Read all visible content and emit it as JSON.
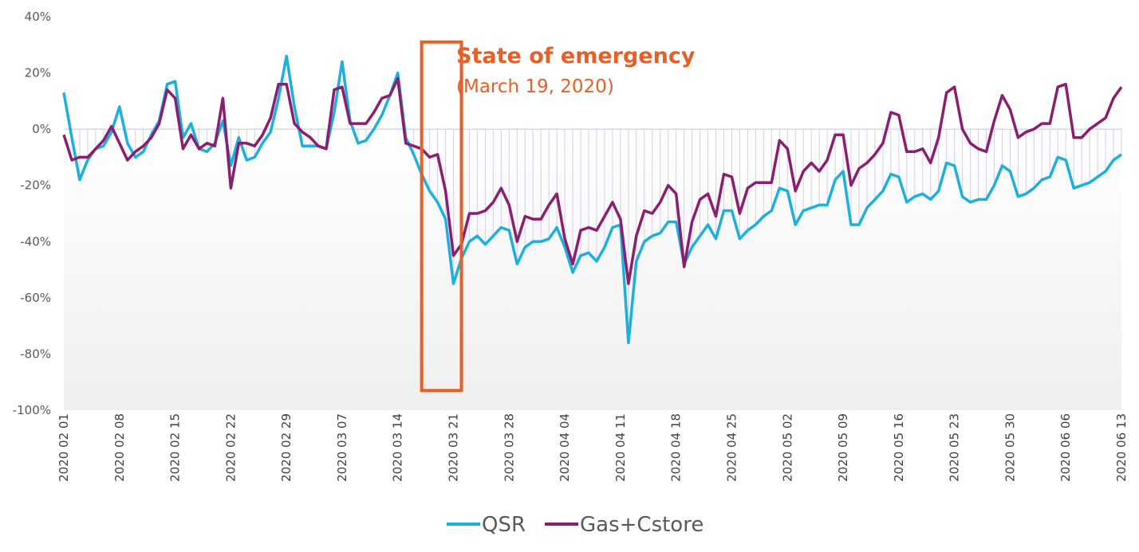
{
  "chart_data": {
    "type": "line",
    "title": "",
    "xlabel": "",
    "ylabel": "",
    "ylim": [
      -100,
      40
    ],
    "ytick_labels": [
      "40%",
      "20%",
      "0%",
      "-20%",
      "-40%",
      "-60%",
      "-80%",
      "-100%"
    ],
    "yticks": [
      40,
      20,
      0,
      -20,
      -40,
      -60,
      -80,
      -100
    ],
    "xtick_labels": [
      "2020 02 01",
      "2020 02 08",
      "2020 02 15",
      "2020 02 22",
      "2020 02 29",
      "2020 03 07",
      "2020 03 14",
      "2020 03 21",
      "2020 03 28",
      "2020 04 04",
      "2020 04 11",
      "2020 04 18",
      "2020 04 25",
      "2020 05 02",
      "2020 05 09",
      "2020 05 16",
      "2020 05 23",
      "2020 05 30",
      "2020 06 06",
      "2020 06 13"
    ],
    "x_start": "2020-02-01",
    "x_end": "2020-06-13",
    "grid": false,
    "legend_position": "bottom",
    "series": [
      {
        "name": "QSR",
        "color": "#1CB0DD",
        "values": [
          13,
          -3,
          -18,
          -11,
          -7,
          -6,
          -1,
          8,
          -5,
          -10,
          -8,
          -2,
          3,
          16,
          17,
          -3,
          2,
          -7,
          -8,
          -5,
          3,
          -13,
          -3,
          -11,
          -10,
          -5,
          -1,
          11,
          26,
          8,
          -6,
          -6,
          -6,
          -7,
          6,
          24,
          3,
          -5,
          -4,
          0,
          5,
          12,
          20,
          -3,
          -9,
          -16,
          -22,
          -26,
          -32,
          -55,
          -46,
          -40,
          -38,
          -41,
          -38,
          -35,
          -36,
          -48,
          -42,
          -40,
          -40,
          -39,
          -35,
          -42,
          -51,
          -45,
          -44,
          -47,
          -42,
          -35,
          -34,
          -76,
          -47,
          -40,
          -38,
          -37,
          -33,
          -33,
          -48,
          -42,
          -38,
          -34,
          -39,
          -29,
          -29,
          -39,
          -36,
          -34,
          -31,
          -29,
          -21,
          -22,
          -34,
          -29,
          -28,
          -27,
          -27,
          -18,
          -15,
          -34,
          -34,
          -28,
          -25,
          -22,
          -16,
          -17,
          -26,
          -24,
          -23,
          -25,
          -22,
          -12,
          -13,
          -24,
          -26,
          -25,
          -25,
          -20,
          -13,
          -15,
          -24,
          -23,
          -21,
          -18,
          -17,
          -10,
          -11,
          -21,
          -20,
          -19,
          -17,
          -15,
          -11,
          -9
        ]
      },
      {
        "name": "Gas+Cstore",
        "color": "#8B1E6E",
        "values": [
          -2,
          -11,
          -10,
          -10,
          -7,
          -4,
          1,
          -5,
          -11,
          -8,
          -6,
          -3,
          2,
          14,
          11,
          -7,
          -2,
          -7,
          -5,
          -6,
          11,
          -21,
          -5,
          -5,
          -6,
          -2,
          4,
          16,
          16,
          2,
          -1,
          -3,
          -6,
          -7,
          14,
          15,
          2,
          2,
          2,
          6,
          11,
          12,
          18,
          -5,
          -6,
          -7,
          -10,
          -9,
          -22,
          -45,
          -41,
          -30,
          -30,
          -29,
          -26,
          -21,
          -27,
          -40,
          -31,
          -32,
          -32,
          -27,
          -23,
          -39,
          -48,
          -36,
          -35,
          -36,
          -31,
          -26,
          -32,
          -55,
          -38,
          -29,
          -30,
          -26,
          -20,
          -23,
          -49,
          -33,
          -25,
          -23,
          -31,
          -16,
          -17,
          -30,
          -21,
          -19,
          -19,
          -19,
          -4,
          -7,
          -22,
          -15,
          -12,
          -15,
          -11,
          -2,
          -2,
          -20,
          -14,
          -12,
          -9,
          -5,
          6,
          5,
          -8,
          -8,
          -7,
          -12,
          -3,
          13,
          15,
          0,
          -5,
          -7,
          -8,
          3,
          12,
          7,
          -3,
          -1,
          0,
          2,
          2,
          15,
          16,
          -3,
          -3,
          0,
          2,
          4,
          11,
          15
        ]
      }
    ],
    "annotation": {
      "title": "State of emergency",
      "subtitle": "(March 19, 2020)",
      "color": "#E85F25",
      "x_from": "2020-03-17",
      "x_to": "2020-03-22",
      "y_from": -93,
      "y_to": 31
    }
  }
}
